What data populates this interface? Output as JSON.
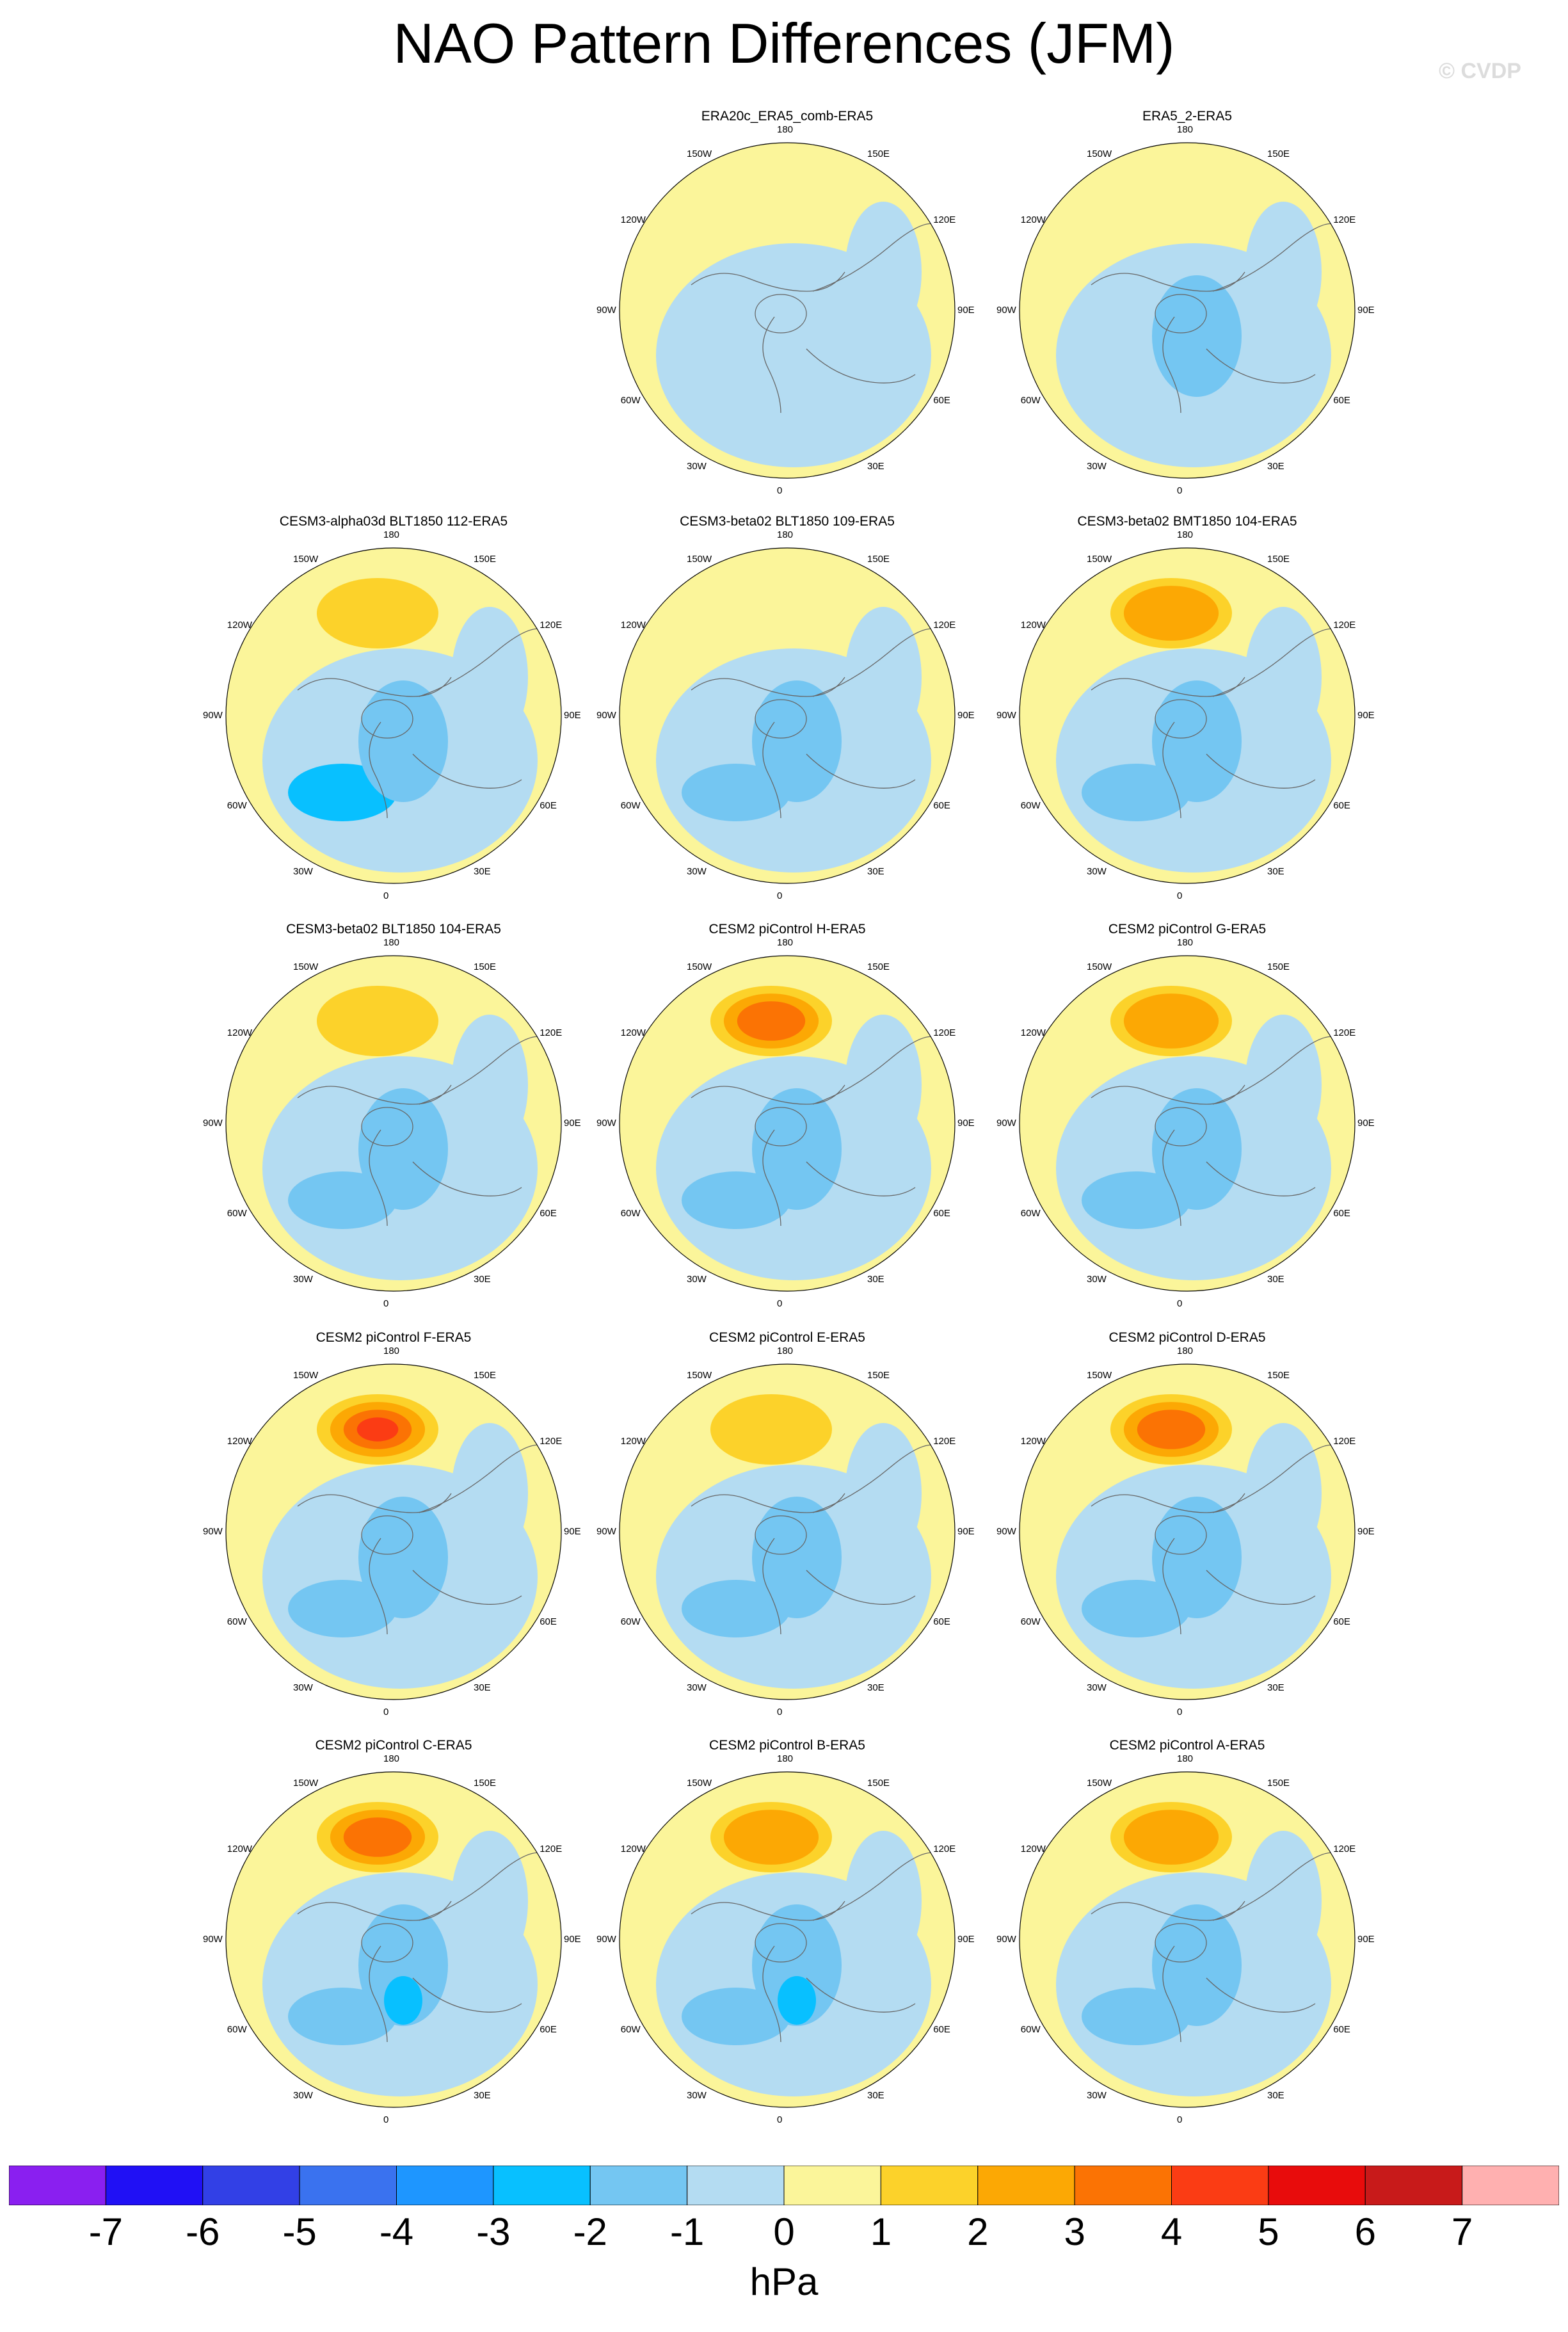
{
  "chart_data": {
    "type": "heatmap",
    "title": "NAO Pattern Differences (JFM)",
    "watermark": "© CVDP",
    "projection": "North polar stereographic",
    "longitude_labels": [
      "180",
      "150E",
      "120E",
      "90E",
      "60E",
      "30E",
      "0",
      "30W",
      "60W",
      "90W",
      "120W",
      "150W"
    ],
    "colorbar": {
      "unit": "hPa",
      "ticks": [
        "-7",
        "-6",
        "-5",
        "-4",
        "-3",
        "-2",
        "-1",
        "0",
        "1",
        "2",
        "3",
        "4",
        "5",
        "6",
        "7"
      ],
      "colors": [
        "#8a1ff0",
        "#2010f5",
        "#3240e6",
        "#3a72ef",
        "#1e96ff",
        "#08c0ff",
        "#74c6f2",
        "#b4dcf2",
        "#fbf59a",
        "#fcd22a",
        "#fca804",
        "#fb7304",
        "#fb3c14",
        "#e80c0c",
        "#c81a1a",
        "#ffb0b0"
      ]
    },
    "panels": [
      {
        "title": "ERA20c_ERA5_comb-ERA5",
        "pacific_max": 0.5,
        "atlantic_min": -0.8,
        "arctic_min": -0.7
      },
      {
        "title": "ERA5_2-ERA5",
        "pacific_max": 0.5,
        "atlantic_min": -0.7,
        "arctic_min": -1.5
      },
      {
        "title": "CESM3-alpha03d BLT1850 112-ERA5",
        "pacific_max": 1.5,
        "atlantic_min": -2.5,
        "arctic_min": -1.5
      },
      {
        "title": "CESM3-beta02 BLT1850 109-ERA5",
        "pacific_max": 0.5,
        "atlantic_min": -1.5,
        "arctic_min": -1.2
      },
      {
        "title": "CESM3-beta02 BMT1850 104-ERA5",
        "pacific_max": 2.5,
        "atlantic_min": -1.5,
        "arctic_min": -1.2
      },
      {
        "title": "CESM3-beta02 BLT1850 104-ERA5",
        "pacific_max": 1.5,
        "atlantic_min": -1.5,
        "arctic_min": -1.2
      },
      {
        "title": "CESM2 piControl H-ERA5",
        "pacific_max": 3.5,
        "atlantic_min": -1.2,
        "arctic_min": -1.5
      },
      {
        "title": "CESM2 piControl G-ERA5",
        "pacific_max": 3.0,
        "atlantic_min": -1.2,
        "arctic_min": -1.5
      },
      {
        "title": "CESM2 piControl F-ERA5",
        "pacific_max": 5.0,
        "atlantic_min": -1.2,
        "arctic_min": -1.5
      },
      {
        "title": "CESM2 piControl E-ERA5",
        "pacific_max": 1.5,
        "atlantic_min": -1.2,
        "arctic_min": -1.5
      },
      {
        "title": "CESM2 piControl D-ERA5",
        "pacific_max": 4.0,
        "atlantic_min": -1.2,
        "arctic_min": -1.5
      },
      {
        "title": "CESM2 piControl C-ERA5",
        "pacific_max": 4.0,
        "atlantic_min": -1.2,
        "arctic_min": -2.5
      },
      {
        "title": "CESM2 piControl B-ERA5",
        "pacific_max": 2.5,
        "atlantic_min": -1.2,
        "arctic_min": -2.5
      },
      {
        "title": "CESM2 piControl A-ERA5",
        "pacific_max": 2.5,
        "atlantic_min": -1.2,
        "arctic_min": -1.5
      }
    ]
  }
}
